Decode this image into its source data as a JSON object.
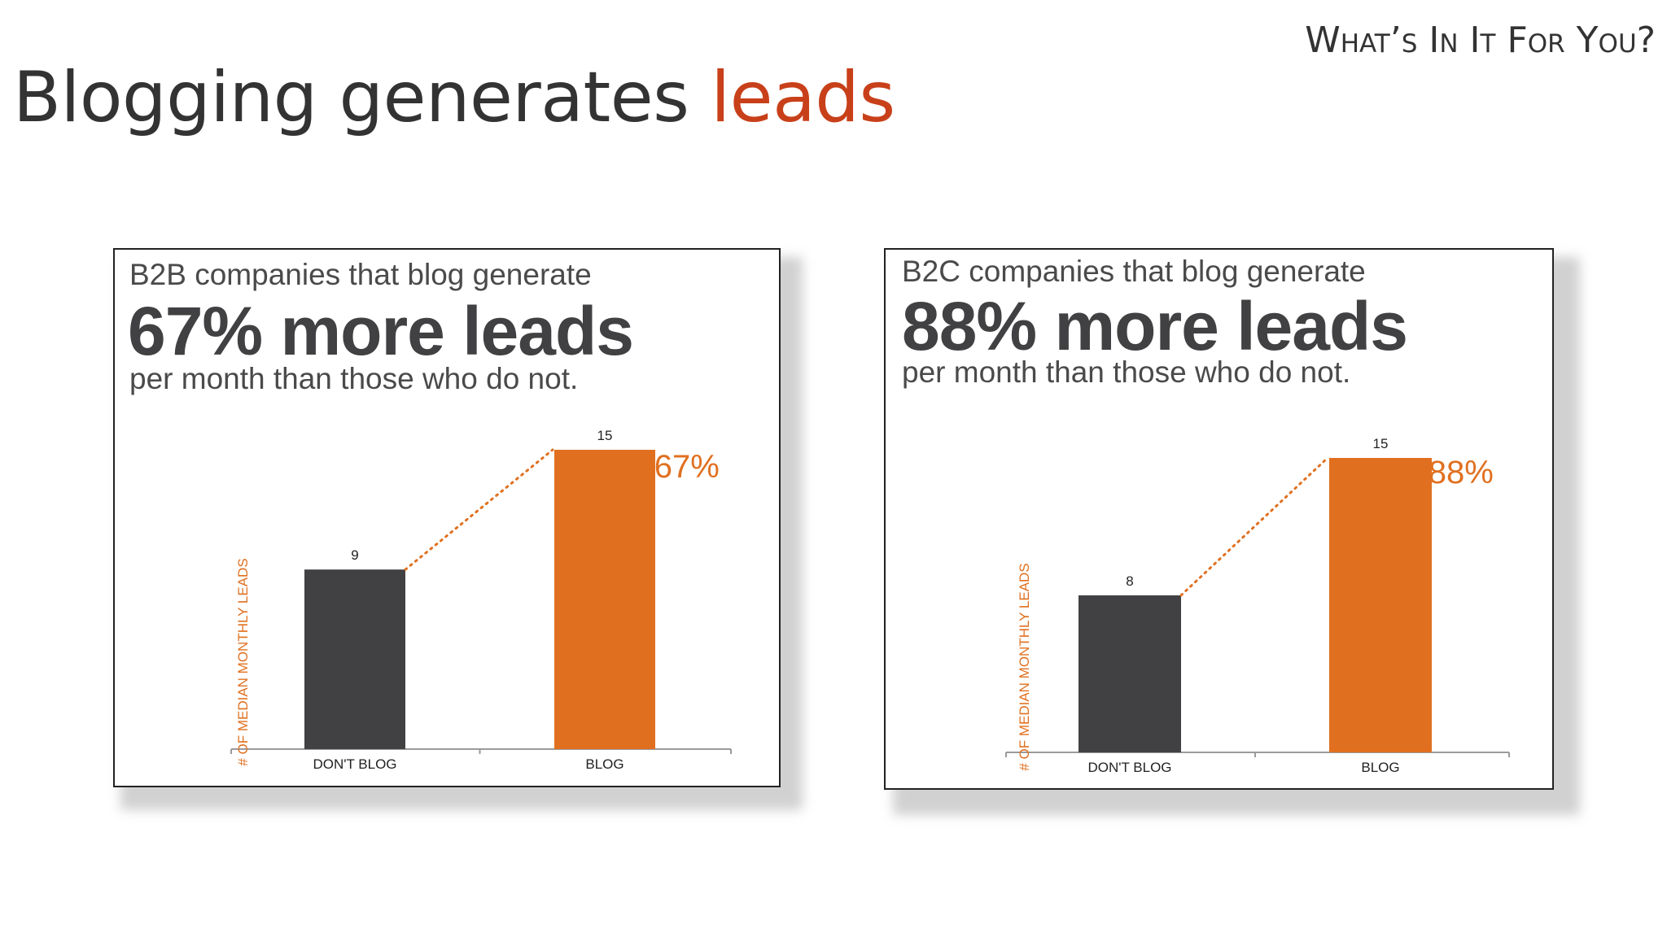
{
  "slide": {
    "title_main": "Blogging generates ",
    "title_accent": "leads",
    "section_label": "What’s In It For You?"
  },
  "colors": {
    "accent": "#c8401a",
    "bar_dark": "#414042",
    "bar_orange": "#e07020",
    "text_dark": "#333333"
  },
  "cards": [
    {
      "intro": "B2B companies that blog generate",
      "headline": "67% more leads",
      "tail": "per month than those who do not."
    },
    {
      "intro": "B2C companies that blog generate",
      "headline": "88% more leads",
      "tail": "per month than those who do not."
    }
  ],
  "chart_data": [
    {
      "type": "bar",
      "categories": [
        "DON'T BLOG",
        "BLOG"
      ],
      "values": [
        9,
        15
      ],
      "data_labels": [
        "9",
        "15"
      ],
      "ylabel": "# OF MEDIAN MONTHLY LEADS",
      "ylim": [
        0,
        15
      ],
      "annotation": "⇧67%",
      "bar_colors": [
        "#414042",
        "#e07020"
      ],
      "grid": false
    },
    {
      "type": "bar",
      "categories": [
        "DON'T BLOG",
        "BLOG"
      ],
      "values": [
        8,
        15
      ],
      "data_labels": [
        "8",
        "15"
      ],
      "ylabel": "# OF MEDIAN MONTHLY LEADS",
      "ylim": [
        0,
        15
      ],
      "annotation": "⇧88%",
      "bar_colors": [
        "#414042",
        "#e07020"
      ],
      "grid": false
    }
  ]
}
